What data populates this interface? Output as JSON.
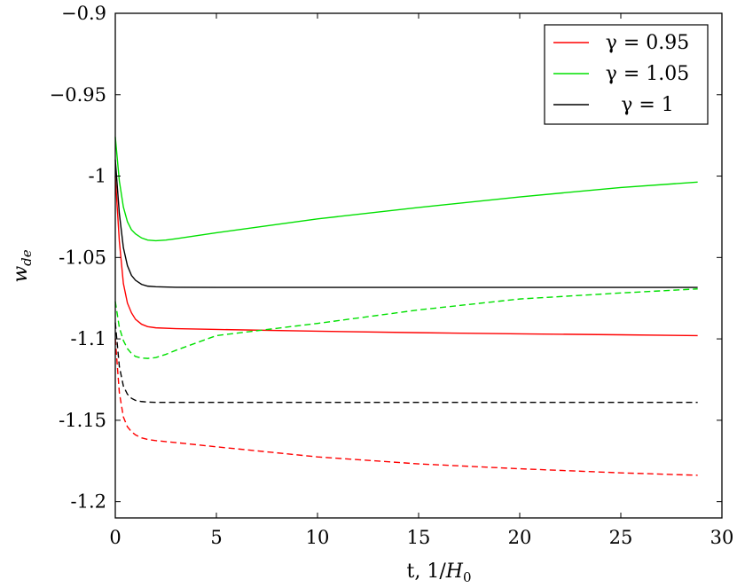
{
  "chart_data": {
    "type": "line",
    "xlabel_prefix": "t, 1/",
    "xlabel_var": "H",
    "xlabel_sub": "0",
    "ylabel_var": "w",
    "ylabel_sub": "de",
    "xlim": [
      0,
      30
    ],
    "ylim": [
      -1.21,
      -0.9
    ],
    "x_ticks": [
      0,
      5,
      10,
      15,
      20,
      25,
      30
    ],
    "x_tick_labels": [
      "0",
      "5",
      "10",
      "15",
      "20",
      "25",
      "30"
    ],
    "y_ticks": [
      -0.9,
      -0.95,
      -1.0,
      -1.05,
      -1.1,
      -1.15,
      -1.2
    ],
    "y_tick_labels": [
      "−0.9",
      "−0.95",
      "-1",
      "-1.05",
      "-1.1",
      "-1.15",
      "-1.2"
    ],
    "legend_position": "top-right",
    "grid": false,
    "series": [
      {
        "name": "γ = 0.95",
        "color": "#ff0000",
        "dash": "solid",
        "x": [
          0,
          0.2,
          0.4,
          0.6,
          0.8,
          1.0,
          1.3,
          1.6,
          2.0,
          3.0,
          5,
          10,
          15,
          20,
          25,
          28.8
        ],
        "y": [
          -1.0,
          -1.04,
          -1.066,
          -1.078,
          -1.084,
          -1.088,
          -1.091,
          -1.0925,
          -1.0932,
          -1.0937,
          -1.0942,
          -1.0953,
          -1.0962,
          -1.0969,
          -1.0975,
          -1.098
        ]
      },
      {
        "name": "γ = 1.05",
        "color": "#00e000",
        "dash": "solid",
        "x": [
          0,
          0.2,
          0.4,
          0.6,
          0.8,
          1.0,
          1.3,
          1.6,
          2.0,
          2.5,
          3.0,
          5,
          10,
          15,
          20,
          25,
          28.8
        ],
        "y": [
          -0.976,
          -1.003,
          -1.019,
          -1.028,
          -1.033,
          -1.0355,
          -1.038,
          -1.0393,
          -1.0397,
          -1.0393,
          -1.0385,
          -1.0348,
          -1.0263,
          -1.0193,
          -1.0128,
          -1.007,
          -1.0037
        ]
      },
      {
        "name": "γ = 1",
        "color": "#000000",
        "dash": "solid",
        "x": [
          0,
          0.2,
          0.4,
          0.6,
          0.8,
          1.0,
          1.3,
          1.6,
          2.0,
          3.0,
          5,
          10,
          15,
          20,
          25,
          28.8
        ],
        "y": [
          -0.99,
          -1.023,
          -1.044,
          -1.055,
          -1.061,
          -1.064,
          -1.0665,
          -1.0676,
          -1.068,
          -1.0683,
          -1.0684,
          -1.0684,
          -1.0684,
          -1.0684,
          -1.0684,
          -1.0684
        ]
      },
      {
        "name": "",
        "color": "#ff0000",
        "dash": "dashed",
        "x": [
          0,
          0.2,
          0.4,
          0.6,
          0.8,
          1.0,
          1.3,
          1.6,
          2.0,
          3.0,
          5,
          10,
          15,
          20,
          25,
          28.8
        ],
        "y": [
          -1.1,
          -1.133,
          -1.148,
          -1.154,
          -1.157,
          -1.159,
          -1.1608,
          -1.1618,
          -1.1625,
          -1.1637,
          -1.1663,
          -1.1725,
          -1.1768,
          -1.1798,
          -1.1823,
          -1.1838
        ]
      },
      {
        "name": "",
        "color": "#00e000",
        "dash": "dashed",
        "x": [
          0,
          0.2,
          0.4,
          0.6,
          0.8,
          1.0,
          1.3,
          1.6,
          2.0,
          2.5,
          3.0,
          5,
          10,
          15,
          20,
          25,
          28.8
        ],
        "y": [
          -1.077,
          -1.093,
          -1.101,
          -1.106,
          -1.109,
          -1.1108,
          -1.1118,
          -1.112,
          -1.1115,
          -1.1095,
          -1.107,
          -1.098,
          -1.0905,
          -1.0822,
          -1.0755,
          -1.0718,
          -1.0693
        ]
      },
      {
        "name": "",
        "color": "#000000",
        "dash": "dashed",
        "x": [
          0,
          0.2,
          0.4,
          0.6,
          0.8,
          1.0,
          1.3,
          1.6,
          2.0,
          3.0,
          5,
          10,
          15,
          20,
          25,
          28.8
        ],
        "y": [
          -1.09,
          -1.117,
          -1.129,
          -1.134,
          -1.1365,
          -1.1378,
          -1.1385,
          -1.1388,
          -1.139,
          -1.139,
          -1.139,
          -1.139,
          -1.139,
          -1.139,
          -1.139,
          -1.139
        ]
      }
    ]
  }
}
